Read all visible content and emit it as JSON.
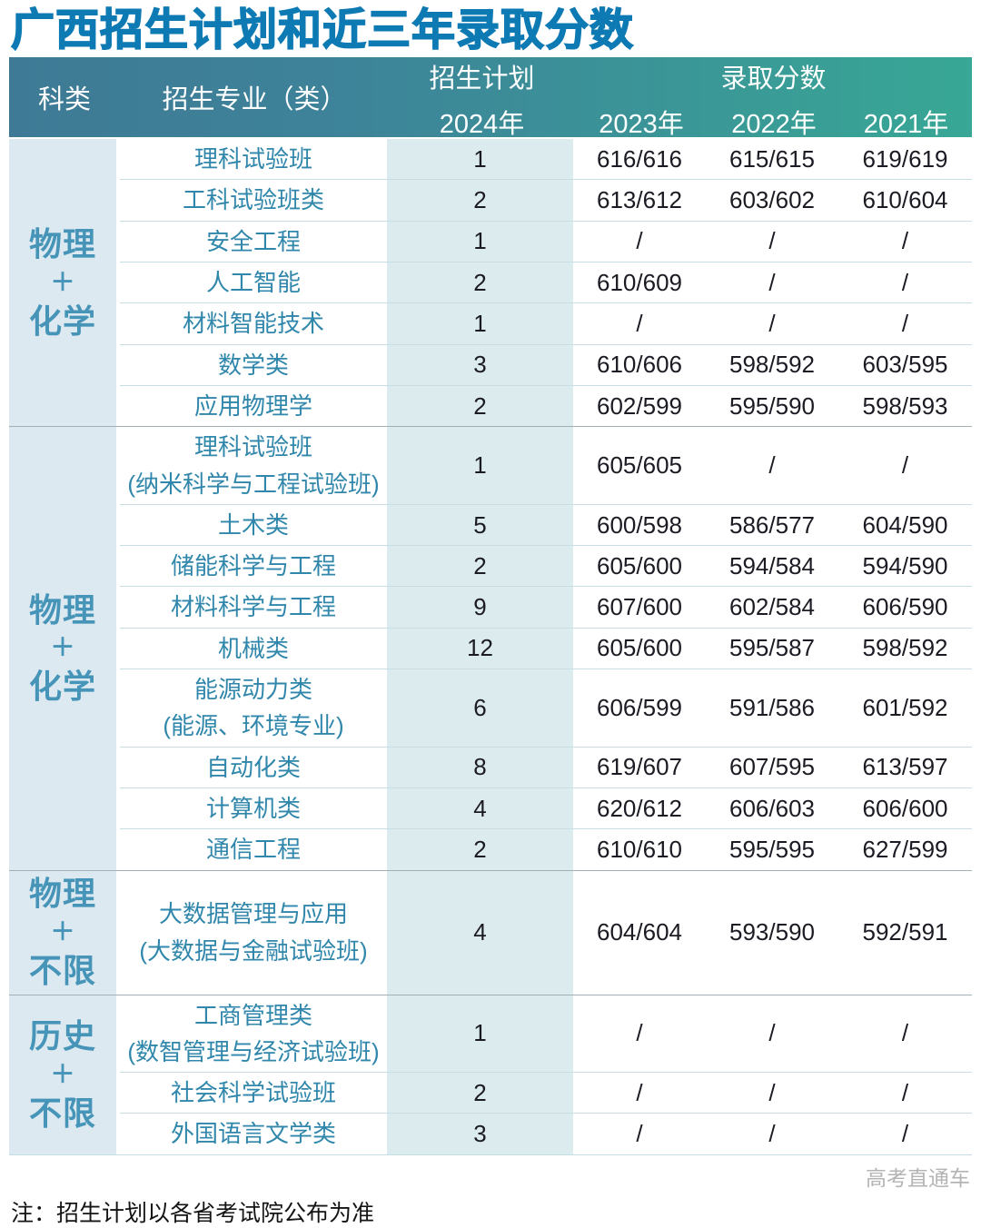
{
  "title": "广西招生计划和近三年录取分数",
  "colors": {
    "title_blue": "#0e7ab4",
    "header_gradient_left": "#3e7a95",
    "header_gradient_right": "#38a795",
    "category_column_bg": "#dce9f0",
    "plan_column_bg": "#dcebee",
    "major_text": "#3087ab",
    "category_text": "#4694b8",
    "score_text": "#1b1b24",
    "row_divider": "#c8dee4",
    "group_divider": "#a2b0b6",
    "watermark_gray": "#b4b4b4"
  },
  "table": {
    "header": {
      "category": "科类",
      "major": "招生专业（类）",
      "plan_top": "招生计划",
      "plan_bottom": "2024年",
      "score": "录取分数",
      "years": [
        "2023年",
        "2022年",
        "2021年"
      ]
    },
    "groups": [
      {
        "category_lines": [
          "物理",
          "＋",
          "化学"
        ],
        "rows": [
          {
            "major_lines": [
              "理科试验班"
            ],
            "plan": "1",
            "scores": [
              "616/616",
              "615/615",
              "619/619"
            ],
            "h": 1
          },
          {
            "major_lines": [
              "工科试验班类"
            ],
            "plan": "2",
            "scores": [
              "613/612",
              "603/602",
              "610/604"
            ],
            "h": 1
          },
          {
            "major_lines": [
              "安全工程"
            ],
            "plan": "1",
            "scores": [
              "/",
              "/",
              "/"
            ],
            "h": 1
          },
          {
            "major_lines": [
              "人工智能"
            ],
            "plan": "2",
            "scores": [
              "610/609",
              "/",
              "/"
            ],
            "h": 1
          },
          {
            "major_lines": [
              "材料智能技术"
            ],
            "plan": "1",
            "scores": [
              "/",
              "/",
              "/"
            ],
            "h": 1
          },
          {
            "major_lines": [
              "数学类"
            ],
            "plan": "3",
            "scores": [
              "610/606",
              "598/592",
              "603/595"
            ],
            "h": 1
          },
          {
            "major_lines": [
              "应用物理学"
            ],
            "plan": "2",
            "scores": [
              "602/599",
              "595/590",
              "598/593"
            ],
            "h": 1
          }
        ]
      },
      {
        "category_lines": [
          "物理",
          "＋",
          "化学"
        ],
        "rows": [
          {
            "major_lines": [
              "理科试验班",
              "(纳米科学与工程试验班)"
            ],
            "plan": "1",
            "scores": [
              "605/605",
              "/",
              "/"
            ],
            "h": 2
          },
          {
            "major_lines": [
              "土木类"
            ],
            "plan": "5",
            "scores": [
              "600/598",
              "586/577",
              "604/590"
            ],
            "h": 1
          },
          {
            "major_lines": [
              "储能科学与工程"
            ],
            "plan": "2",
            "scores": [
              "605/600",
              "594/584",
              "594/590"
            ],
            "h": 1
          },
          {
            "major_lines": [
              "材料科学与工程"
            ],
            "plan": "9",
            "scores": [
              "607/600",
              "602/584",
              "606/590"
            ],
            "h": 1
          },
          {
            "major_lines": [
              "机械类"
            ],
            "plan": "12",
            "scores": [
              "605/600",
              "595/587",
              "598/592"
            ],
            "h": 1
          },
          {
            "major_lines": [
              "能源动力类",
              "(能源、环境专业)"
            ],
            "plan": "6",
            "scores": [
              "606/599",
              "591/586",
              "601/592"
            ],
            "h": 2
          },
          {
            "major_lines": [
              "自动化类"
            ],
            "plan": "8",
            "scores": [
              "619/607",
              "607/595",
              "613/597"
            ],
            "h": 1
          },
          {
            "major_lines": [
              "计算机类"
            ],
            "plan": "4",
            "scores": [
              "620/612",
              "606/603",
              "606/600"
            ],
            "h": 1
          },
          {
            "major_lines": [
              "通信工程"
            ],
            "plan": "2",
            "scores": [
              "610/610",
              "595/595",
              "627/599"
            ],
            "h": 1
          }
        ]
      },
      {
        "category_lines": [
          "物理",
          "＋",
          "不限"
        ],
        "rows": [
          {
            "major_lines": [
              "大数据管理与应用",
              "(大数据与金融试验班)"
            ],
            "plan": "4",
            "scores": [
              "604/604",
              "593/590",
              "592/591"
            ],
            "h": 3
          }
        ]
      },
      {
        "category_lines": [
          "历史",
          "＋",
          "不限"
        ],
        "rows": [
          {
            "major_lines": [
              "工商管理类",
              "(数智管理与经济试验班)"
            ],
            "plan": "1",
            "scores": [
              "/",
              "/",
              "/"
            ],
            "h": 2
          },
          {
            "major_lines": [
              "社会科学试验班"
            ],
            "plan": "2",
            "scores": [
              "/",
              "/",
              "/"
            ],
            "h": 1
          },
          {
            "major_lines": [
              "外国语言文学类"
            ],
            "plan": "3",
            "scores": [
              "/",
              "/",
              "/"
            ],
            "h": 1
          }
        ]
      }
    ]
  },
  "footer": {
    "watermark": "高考直通车",
    "note": "注：招生计划以各省考试院公布为准"
  },
  "chart_data": {
    "type": "table",
    "title": "广西招生计划和近三年录取分数",
    "columns": [
      "科类",
      "招生专业（类）",
      "招生计划2024年",
      "录取分数2023年",
      "录取分数2022年",
      "录取分数2021年"
    ],
    "rows": [
      [
        "物理＋化学",
        "理科试验班",
        "1",
        "616/616",
        "615/615",
        "619/619"
      ],
      [
        "物理＋化学",
        "工科试验班类",
        "2",
        "613/612",
        "603/602",
        "610/604"
      ],
      [
        "物理＋化学",
        "安全工程",
        "1",
        "/",
        "/",
        "/"
      ],
      [
        "物理＋化学",
        "人工智能",
        "2",
        "610/609",
        "/",
        "/"
      ],
      [
        "物理＋化学",
        "材料智能技术",
        "1",
        "/",
        "/",
        "/"
      ],
      [
        "物理＋化学",
        "数学类",
        "3",
        "610/606",
        "598/592",
        "603/595"
      ],
      [
        "物理＋化学",
        "应用物理学",
        "2",
        "602/599",
        "595/590",
        "598/593"
      ],
      [
        "物理＋化学",
        "理科试验班(纳米科学与工程试验班)",
        "1",
        "605/605",
        "/",
        "/"
      ],
      [
        "物理＋化学",
        "土木类",
        "5",
        "600/598",
        "586/577",
        "604/590"
      ],
      [
        "物理＋化学",
        "储能科学与工程",
        "2",
        "605/600",
        "594/584",
        "594/590"
      ],
      [
        "物理＋化学",
        "材料科学与工程",
        "9",
        "607/600",
        "602/584",
        "606/590"
      ],
      [
        "物理＋化学",
        "机械类",
        "12",
        "605/600",
        "595/587",
        "598/592"
      ],
      [
        "物理＋化学",
        "能源动力类(能源、环境专业)",
        "6",
        "606/599",
        "591/586",
        "601/592"
      ],
      [
        "物理＋化学",
        "自动化类",
        "8",
        "619/607",
        "607/595",
        "613/597"
      ],
      [
        "物理＋化学",
        "计算机类",
        "4",
        "620/612",
        "606/603",
        "606/600"
      ],
      [
        "物理＋化学",
        "通信工程",
        "2",
        "610/610",
        "595/595",
        "627/599"
      ],
      [
        "物理＋不限",
        "大数据管理与应用(大数据与金融试验班)",
        "4",
        "604/604",
        "593/590",
        "592/591"
      ],
      [
        "历史＋不限",
        "工商管理类(数智管理与经济试验班)",
        "1",
        "/",
        "/",
        "/"
      ],
      [
        "历史＋不限",
        "社会科学试验班",
        "2",
        "/",
        "/",
        "/"
      ],
      [
        "历史＋不限",
        "外国语言文学类",
        "3",
        "/",
        "/",
        "/"
      ]
    ]
  }
}
